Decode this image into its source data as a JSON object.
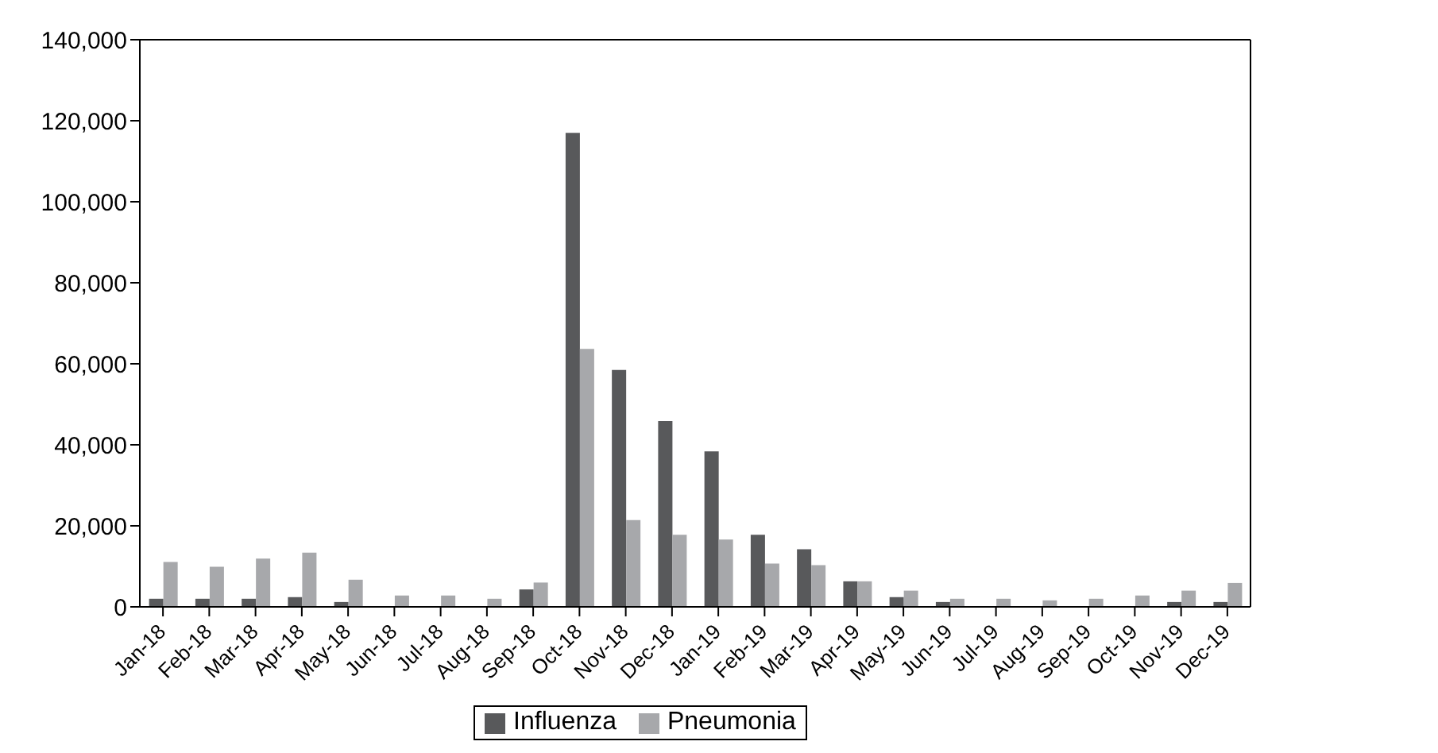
{
  "chart_data": {
    "type": "bar",
    "categories": [
      "Jan-18",
      "Feb-18",
      "Mar-18",
      "Apr-18",
      "May-18",
      "Jun-18",
      "Jul-18",
      "Aug-18",
      "Sep-18",
      "Oct-18",
      "Nov-18",
      "Dec-18",
      "Jan-19",
      "Feb-19",
      "Mar-19",
      "Apr-19",
      "May-19",
      "Jun-19",
      "Jul-19",
      "Aug-19",
      "Sep-19",
      "Oct-19",
      "Nov-19",
      "Dec-19"
    ],
    "series": [
      {
        "name": "Influenza",
        "color": "#58595b",
        "values": [
          2000,
          2000,
          2000,
          2400,
          1200,
          0,
          0,
          0,
          4300,
          117000,
          58500,
          45900,
          38400,
          17800,
          14200,
          6300,
          2400,
          1200,
          0,
          0,
          0,
          0,
          1200,
          1200
        ]
      },
      {
        "name": "Pneumonia",
        "color": "#a7a8ab",
        "values": [
          11100,
          9900,
          11900,
          13400,
          6700,
          2800,
          2800,
          2000,
          6000,
          63700,
          21400,
          17800,
          16600,
          10700,
          10300,
          6300,
          4000,
          2000,
          2000,
          1600,
          2000,
          2800,
          4000,
          5900
        ]
      }
    ],
    "ylim": [
      0,
      140000
    ],
    "yticks": [
      0,
      {
        "value": 20000,
        "label": "20,000"
      },
      {
        "value": 40000,
        "label": "40,000"
      },
      {
        "value": 60000,
        "label": "60,000"
      },
      {
        "value": 80000,
        "label": "80,000"
      },
      {
        "value": 100000,
        "label": "100,000"
      },
      {
        "value": 120000,
        "label": "120,000"
      },
      {
        "value": 140000,
        "label": "140,000"
      }
    ],
    "grid": false,
    "legend": "bottom"
  }
}
